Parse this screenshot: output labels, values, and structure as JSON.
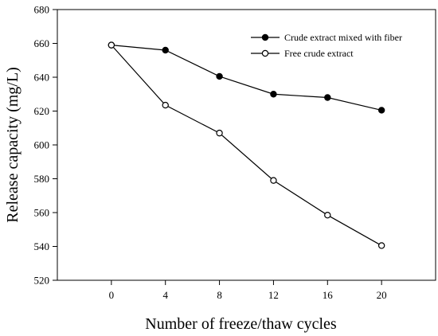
{
  "chart_data": {
    "type": "line",
    "xlabel": "Number of freeze/thaw cycles",
    "ylabel": "Release capacity (mg/L)",
    "x": [
      0,
      4,
      8,
      12,
      16,
      20
    ],
    "xlim": [
      -4,
      24
    ],
    "ylim": [
      520,
      680
    ],
    "xticks": [
      0,
      4,
      8,
      12,
      16,
      20
    ],
    "yticks": [
      520,
      540,
      560,
      580,
      600,
      620,
      640,
      660,
      680
    ],
    "grid": false,
    "legend_position": "top-right",
    "series": [
      {
        "name": "Crude extract mixed with fiber",
        "marker": "filled-circle",
        "color": "#000000",
        "values": [
          659,
          656,
          640.5,
          630,
          628,
          620.5
        ]
      },
      {
        "name": "Free crude extract",
        "marker": "open-circle",
        "color": "#000000",
        "values": [
          659,
          623.5,
          607,
          579,
          558.5,
          540.5
        ]
      }
    ]
  }
}
